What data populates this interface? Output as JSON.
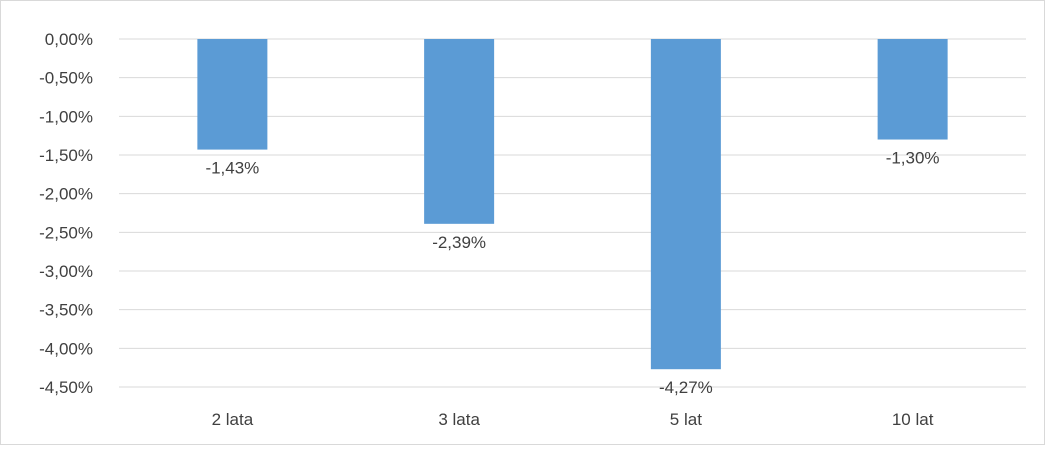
{
  "chart_data": {
    "type": "bar",
    "title": "",
    "xlabel": "",
    "ylabel": "",
    "categories": [
      "2 lata",
      "3 lata",
      "5 lat",
      "10 lat"
    ],
    "values": [
      -1.43,
      -2.39,
      -4.27,
      -1.3
    ],
    "data_labels": [
      "-1,43%",
      "-2,39%",
      "-4,27%",
      "-1,30%"
    ],
    "ylim": [
      -4.5,
      0
    ],
    "yticks": [
      0,
      -0.5,
      -1.0,
      -1.5,
      -2.0,
      -2.5,
      -3.0,
      -3.5,
      -4.0,
      -4.5
    ],
    "ytick_labels": [
      "0,00%",
      "-0,50%",
      "-1,00%",
      "-1,50%",
      "-2,00%",
      "-2,50%",
      "-3,00%",
      "-3,50%",
      "-4,00%",
      "-4,50%"
    ],
    "grid": true,
    "legend": "none",
    "colors": {
      "bar": "#5b9bd5",
      "grid": "#d9d9d9",
      "text": "#404040"
    }
  }
}
